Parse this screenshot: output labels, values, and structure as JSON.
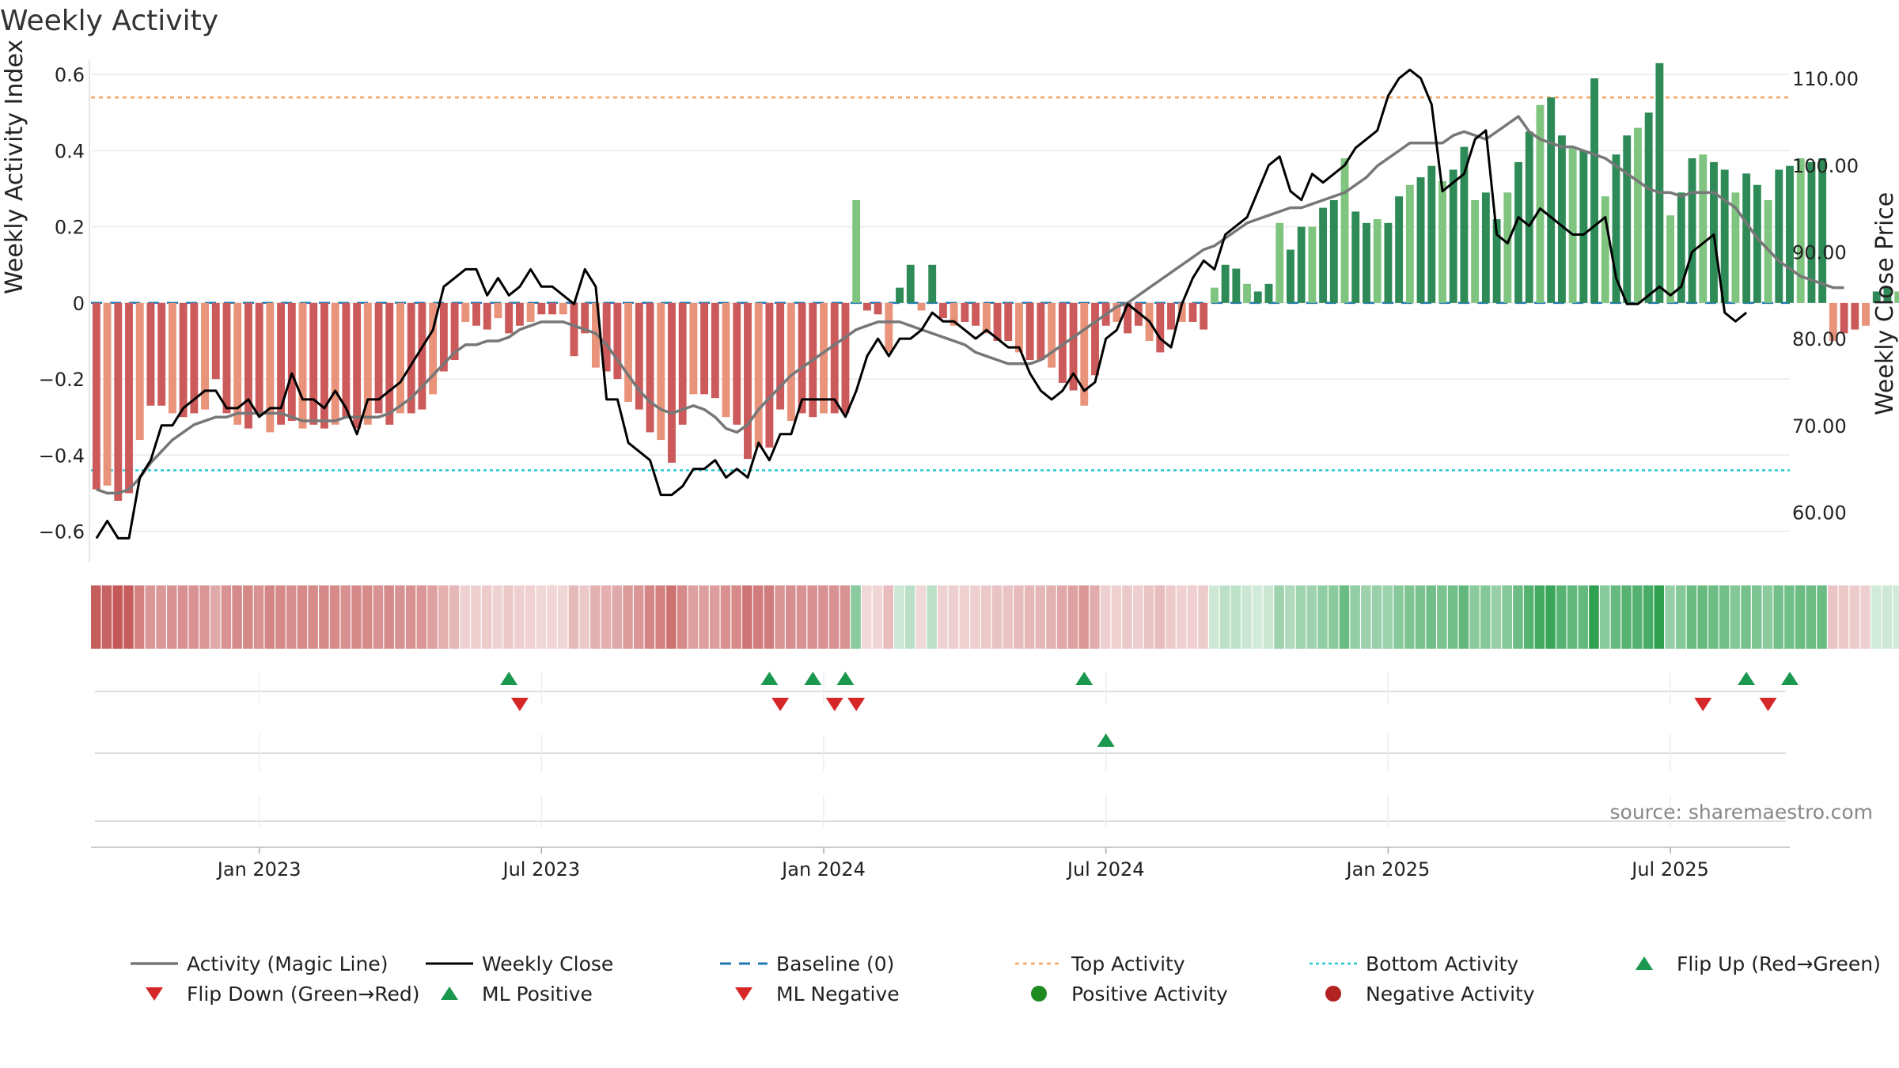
{
  "chart_data": {
    "type": "bar",
    "title": "Weekly Activity",
    "ylabel": "Weekly Activity Index",
    "y2label": "Weekly Close Price",
    "ylim": [
      -0.68,
      0.64
    ],
    "y2lim": [
      54.3,
      112.2
    ],
    "yticks": [
      "0.6",
      "0.4",
      "0.2",
      "0",
      "−0.2",
      "−0.4",
      "−0.6"
    ],
    "ytick_values": [
      0.6,
      0.4,
      0.2,
      0,
      -0.2,
      -0.4,
      -0.6
    ],
    "y2ticks": [
      "110.00",
      "100.00",
      "90.00",
      "80.00",
      "70.00",
      "60.00"
    ],
    "y2tick_values": [
      110,
      100,
      90,
      80,
      70,
      60
    ],
    "xticks": [
      "Jan 2023",
      "Jul 2023",
      "Jan 2024",
      "Jul 2024",
      "Jan 2025",
      "Jul 2025"
    ],
    "xtick_weeks": [
      15,
      41,
      67,
      93,
      119,
      145
    ],
    "top_activity": 0.54,
    "bottom_activity": -0.44,
    "baseline": 0,
    "weeks": 157,
    "activity": [
      -0.49,
      -0.48,
      -0.52,
      -0.5,
      -0.36,
      -0.27,
      -0.27,
      -0.29,
      -0.3,
      -0.29,
      -0.28,
      -0.2,
      -0.29,
      -0.32,
      -0.33,
      -0.29,
      -0.34,
      -0.32,
      -0.31,
      -0.33,
      -0.32,
      -0.33,
      -0.32,
      -0.3,
      -0.33,
      -0.32,
      -0.29,
      -0.32,
      -0.29,
      -0.29,
      -0.28,
      -0.24,
      -0.18,
      -0.15,
      -0.05,
      -0.06,
      -0.07,
      -0.04,
      -0.08,
      -0.06,
      -0.05,
      -0.03,
      -0.03,
      -0.03,
      -0.14,
      -0.08,
      -0.17,
      -0.18,
      -0.2,
      -0.26,
      -0.28,
      -0.34,
      -0.36,
      -0.42,
      -0.32,
      -0.24,
      -0.24,
      -0.25,
      -0.3,
      -0.32,
      -0.41,
      -0.38,
      -0.38,
      -0.28,
      -0.31,
      -0.29,
      -0.3,
      -0.29,
      -0.29,
      -0.29,
      0.27,
      -0.02,
      -0.03,
      -0.13,
      0.04,
      0.1,
      -0.02,
      0.1,
      -0.04,
      -0.06,
      -0.05,
      -0.06,
      -0.08,
      -0.1,
      -0.1,
      -0.13,
      -0.15,
      -0.15,
      -0.17,
      -0.21,
      -0.23,
      -0.27,
      -0.19,
      -0.06,
      -0.05,
      -0.08,
      -0.06,
      -0.1,
      -0.13,
      -0.07,
      -0.05,
      -0.05,
      -0.07,
      0.04,
      0.1,
      0.09,
      0.05,
      0.03,
      0.05,
      0.21,
      0.14,
      0.2,
      0.2,
      0.25,
      0.27,
      0.38,
      0.24,
      0.21,
      0.22,
      0.21,
      0.28,
      0.31,
      0.33,
      0.36,
      0.32,
      0.35,
      0.41,
      0.27,
      0.29,
      0.22,
      0.29,
      0.37,
      0.45,
      0.52,
      0.54,
      0.44,
      0.41,
      0.4,
      0.59,
      0.28,
      0.39,
      0.44,
      0.46,
      0.5,
      0.63,
      0.23,
      0.29,
      0.38,
      0.39,
      0.37,
      0.35,
      0.29,
      0.34,
      0.31,
      0.27,
      0.35,
      0.36,
      0.38,
      0.37,
      0.38
    ],
    "activity_tail": [
      -0.1,
      -0.08,
      -0.07,
      -0.06,
      0.03,
      0.04,
      0.03,
      0.04
    ],
    "magic_line": [
      -0.49,
      -0.5,
      -0.5,
      -0.49,
      -0.46,
      -0.42,
      -0.39,
      -0.36,
      -0.34,
      -0.32,
      -0.31,
      -0.3,
      -0.3,
      -0.29,
      -0.29,
      -0.29,
      -0.29,
      -0.29,
      -0.3,
      -0.31,
      -0.31,
      -0.31,
      -0.31,
      -0.3,
      -0.3,
      -0.3,
      -0.3,
      -0.29,
      -0.27,
      -0.25,
      -0.22,
      -0.19,
      -0.16,
      -0.13,
      -0.11,
      -0.11,
      -0.1,
      -0.1,
      -0.09,
      -0.07,
      -0.06,
      -0.05,
      -0.05,
      -0.05,
      -0.06,
      -0.07,
      -0.08,
      -0.11,
      -0.15,
      -0.19,
      -0.23,
      -0.26,
      -0.28,
      -0.29,
      -0.28,
      -0.27,
      -0.28,
      -0.3,
      -0.33,
      -0.34,
      -0.32,
      -0.28,
      -0.25,
      -0.22,
      -0.19,
      -0.17,
      -0.15,
      -0.13,
      -0.11,
      -0.09,
      -0.07,
      -0.06,
      -0.05,
      -0.05,
      -0.05,
      -0.06,
      -0.07,
      -0.08,
      -0.09,
      -0.1,
      -0.11,
      -0.13,
      -0.14,
      -0.15,
      -0.16,
      -0.16,
      -0.16,
      -0.15,
      -0.13,
      -0.11,
      -0.09,
      -0.07,
      -0.05,
      -0.03,
      -0.01,
      0.0,
      0.02,
      0.04,
      0.06,
      0.08,
      0.1,
      0.12,
      0.14,
      0.15,
      0.17,
      0.19,
      0.21,
      0.22,
      0.23,
      0.24,
      0.25,
      0.25,
      0.26,
      0.27,
      0.28,
      0.29,
      0.31,
      0.33,
      0.36,
      0.38,
      0.4,
      0.42,
      0.42,
      0.42,
      0.42,
      0.44,
      0.45,
      0.44,
      0.43,
      0.45,
      0.47,
      0.49,
      0.45,
      0.43,
      0.42,
      0.41,
      0.41,
      0.4,
      0.39,
      0.38,
      0.36,
      0.34,
      0.32,
      0.3,
      0.29,
      0.29,
      0.28,
      0.29,
      0.29,
      0.29,
      0.27,
      0.25,
      0.21,
      0.17,
      0.14,
      0.11,
      0.09,
      0.07,
      0.06,
      0.05,
      0.04,
      0.04
    ],
    "weekly_close": [
      57,
      59,
      57,
      57,
      64,
      66,
      70,
      70,
      72,
      73,
      74,
      74,
      72,
      72,
      73,
      71,
      72,
      72,
      76,
      73,
      73,
      72,
      74,
      72,
      69,
      73,
      73,
      74,
      75,
      77,
      79,
      81,
      86,
      87,
      88,
      88,
      85,
      87,
      85,
      86,
      88,
      86,
      86,
      85,
      84,
      88,
      86,
      73,
      73,
      68,
      67,
      66,
      62,
      62,
      63,
      65,
      65,
      66,
      64,
      65,
      64,
      68,
      66,
      69,
      69,
      73,
      73,
      73,
      73,
      71,
      74,
      78,
      80,
      78,
      80,
      80,
      81,
      83,
      82,
      82,
      81,
      80,
      81,
      80,
      79,
      79,
      76,
      74,
      73,
      74,
      76,
      74,
      75,
      80,
      81,
      84,
      83,
      82,
      80,
      79,
      84,
      87,
      89,
      88,
      92,
      93,
      94,
      97,
      100,
      101,
      97,
      96,
      99,
      98,
      99,
      100,
      102,
      103,
      104,
      108,
      110,
      111,
      110,
      107,
      97,
      98,
      99,
      103,
      104,
      92,
      91,
      94,
      93,
      95,
      94,
      93,
      92,
      92,
      93,
      94,
      87,
      84,
      84,
      85,
      86,
      85,
      86,
      90,
      91,
      92,
      83,
      82,
      83
    ],
    "series": [
      {
        "name": "Activity (Magic Line)"
      },
      {
        "name": "Weekly Close"
      },
      {
        "name": "Baseline (0)"
      },
      {
        "name": "Top Activity"
      },
      {
        "name": "Bottom Activity"
      },
      {
        "name": "Flip Up (Red→Green)"
      },
      {
        "name": "Flip Down (Green→Red)"
      },
      {
        "name": "ML Positive"
      },
      {
        "name": "ML Negative"
      },
      {
        "name": "Positive Activity"
      },
      {
        "name": "Negative Activity"
      }
    ],
    "flip_up_weeks": [
      38,
      62,
      66,
      69,
      91,
      152,
      156
    ],
    "flip_down_weeks": [
      39,
      63,
      68,
      70,
      148,
      154
    ],
    "ml_positive_weeks": [
      93
    ],
    "ml_negative_weeks": [],
    "source": "source: sharemaestro.com",
    "colors": {
      "neg_dark": "#cc5a5a",
      "neg_light": "#e8937a",
      "pos_dark": "#2e8b57",
      "pos_light": "#7fc47f",
      "magic_line": "#777777",
      "close": "#000000",
      "baseline": "#1f77b4",
      "top": "#f4a460",
      "bottom": "#22c8d0",
      "flip_up": "#1a9850",
      "flip_down": "#d62728",
      "pos_dot": "#1f8a1f",
      "neg_dot": "#b22222"
    }
  }
}
